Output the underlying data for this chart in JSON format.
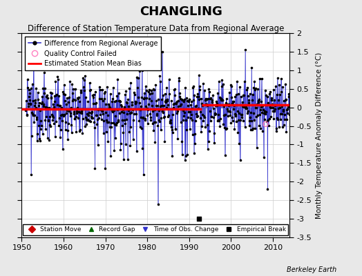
{
  "title": "CHANGLING",
  "subtitle": "Difference of Station Temperature Data from Regional Average",
  "ylabel": "Monthly Temperature Anomaly Difference (°C)",
  "xlim": [
    1950,
    2014
  ],
  "ylim": [
    -3.5,
    2.0
  ],
  "yticks": [
    -3.5,
    -3,
    -2.5,
    -2,
    -1.5,
    -1,
    -0.5,
    0,
    0.5,
    1,
    1.5,
    2
  ],
  "ytick_labels_right": [
    "-3.5",
    "-3",
    "-2.5",
    "-2",
    "-1.5",
    "-1",
    "-0.5",
    "0",
    "0.5",
    "1",
    "1.5",
    "2"
  ],
  "xticks": [
    1950,
    1960,
    1970,
    1980,
    1990,
    2000,
    2010
  ],
  "bias_level": -0.05,
  "bias_break_year": 1993,
  "bias_late_level": 0.07,
  "empirical_break_year": 1992.3,
  "empirical_break_value": -3.0,
  "qc_year": 2008.3,
  "qc_val": -0.45,
  "background_color": "#e8e8e8",
  "plot_bg_color": "#ffffff",
  "line_color": "#3333cc",
  "dot_color": "#000000",
  "bias_color": "#ff0000",
  "qc_failed_color": "#ff80c0",
  "grid_color": "#cccccc",
  "seed": 12345,
  "years_start": 1951,
  "years_end": 2013
}
